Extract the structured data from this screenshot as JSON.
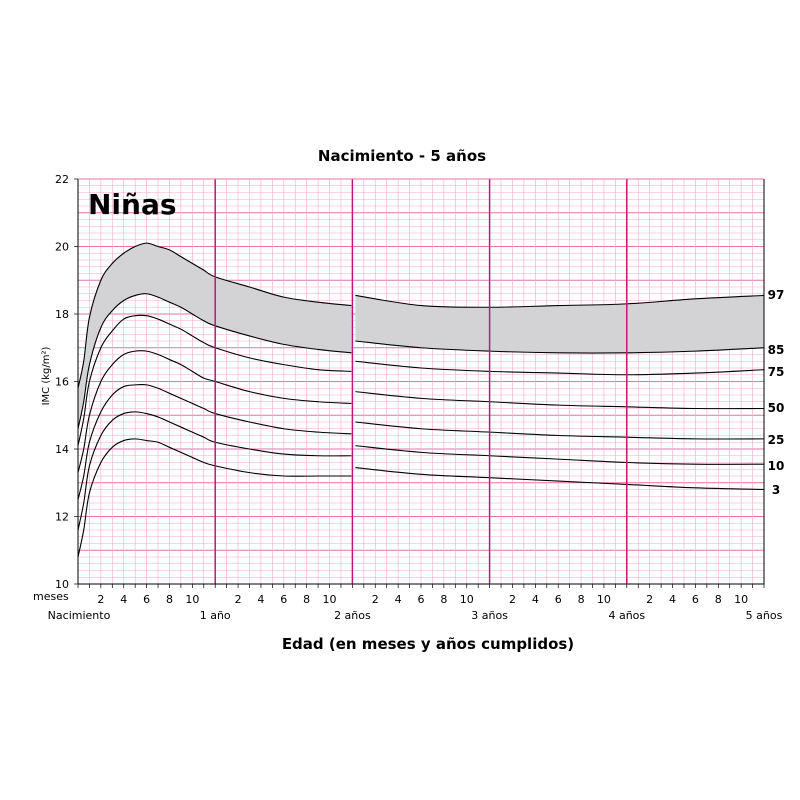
{
  "chart_data": {
    "type": "line",
    "title": "Nacimiento - 5 años",
    "badge": "Niñas",
    "xlabel": "Edad (en meses y años cumplidos)",
    "ylabel": "IMC (kg/m²)",
    "ylim": [
      10,
      22
    ],
    "xlim": [
      0,
      60
    ],
    "yticks": [
      10,
      12,
      14,
      16,
      18,
      20,
      22
    ],
    "months_label": "meses",
    "month_ticks": [
      "2",
      "4",
      "6",
      "8",
      "10"
    ],
    "year_labels": [
      "Nacimiento",
      "1 año",
      "2 años",
      "3 años",
      "4 años",
      "5 años"
    ],
    "grid": true,
    "shaded_band": [
      "85",
      "97"
    ],
    "colors": {
      "grid_minor": "#f2a9c9",
      "grid_major": "#e673a8",
      "year_line": "#c0157e",
      "band_fill": "#d3d3d6",
      "curve": "#000000"
    },
    "x": [
      0,
      0.5,
      1,
      2,
      3,
      4,
      5,
      6,
      7,
      8,
      9,
      10,
      11,
      12,
      15,
      18,
      21,
      24,
      24,
      30,
      36,
      42,
      48,
      54,
      60
    ],
    "series": [
      {
        "name": "97",
        "values": [
          15.8,
          16.6,
          17.9,
          19.0,
          19.5,
          19.8,
          20.0,
          20.1,
          20.0,
          19.9,
          19.7,
          19.5,
          19.3,
          19.1,
          18.8,
          18.5,
          18.35,
          18.25,
          18.55,
          18.25,
          18.2,
          18.25,
          18.3,
          18.45,
          18.55
        ]
      },
      {
        "name": "85",
        "values": [
          14.6,
          15.4,
          16.5,
          17.6,
          18.1,
          18.4,
          18.55,
          18.6,
          18.5,
          18.35,
          18.2,
          18.0,
          17.8,
          17.65,
          17.35,
          17.1,
          16.95,
          16.85,
          17.2,
          17.0,
          16.9,
          16.85,
          16.85,
          16.9,
          17.0
        ]
      },
      {
        "name": "75",
        "values": [
          14.1,
          14.9,
          16.0,
          17.0,
          17.5,
          17.85,
          17.95,
          17.95,
          17.85,
          17.7,
          17.55,
          17.35,
          17.15,
          17.0,
          16.7,
          16.5,
          16.35,
          16.3,
          16.6,
          16.4,
          16.3,
          16.25,
          16.2,
          16.25,
          16.35
        ]
      },
      {
        "name": "50",
        "values": [
          13.3,
          14.0,
          15.0,
          16.0,
          16.5,
          16.8,
          16.9,
          16.9,
          16.8,
          16.65,
          16.5,
          16.3,
          16.1,
          16.0,
          15.7,
          15.5,
          15.4,
          15.35,
          15.7,
          15.5,
          15.4,
          15.3,
          15.25,
          15.2,
          15.2
        ]
      },
      {
        "name": "25",
        "values": [
          12.5,
          13.2,
          14.2,
          15.1,
          15.6,
          15.85,
          15.9,
          15.9,
          15.8,
          15.65,
          15.5,
          15.35,
          15.2,
          15.05,
          14.8,
          14.6,
          14.5,
          14.45,
          14.8,
          14.6,
          14.5,
          14.4,
          14.35,
          14.3,
          14.3
        ]
      },
      {
        "name": "10",
        "values": [
          11.6,
          12.4,
          13.5,
          14.4,
          14.85,
          15.05,
          15.1,
          15.05,
          14.95,
          14.8,
          14.65,
          14.5,
          14.35,
          14.2,
          14.0,
          13.85,
          13.8,
          13.8,
          14.1,
          13.9,
          13.8,
          13.7,
          13.6,
          13.55,
          13.55
        ]
      },
      {
        "name": "3",
        "values": [
          10.8,
          11.6,
          12.7,
          13.6,
          14.05,
          14.25,
          14.3,
          14.25,
          14.2,
          14.05,
          13.9,
          13.75,
          13.6,
          13.5,
          13.3,
          13.2,
          13.2,
          13.2,
          13.45,
          13.25,
          13.15,
          13.05,
          12.95,
          12.85,
          12.8
        ]
      }
    ]
  }
}
